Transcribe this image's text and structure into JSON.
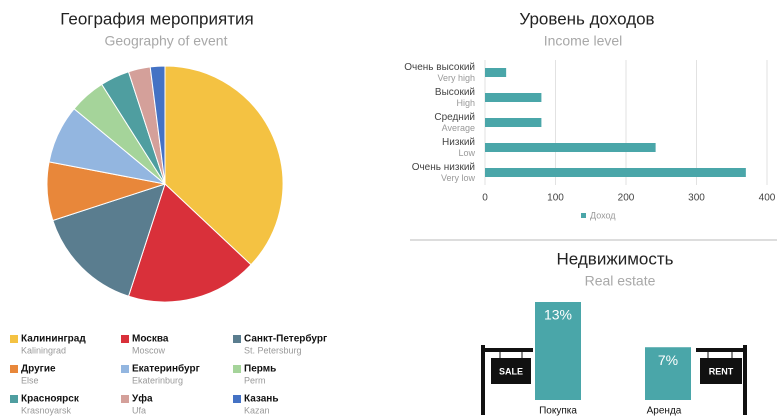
{
  "chart_data": [
    {
      "type": "pie",
      "title": "География мероприятия",
      "subtitle": "Geography of event",
      "categories": [
        "Калининград",
        "Москва",
        "Санкт-Петербург",
        "Другие",
        "Екатеринбург",
        "Пермь",
        "Красноярск",
        "Уфа",
        "Казань"
      ],
      "category_subtitles": [
        "Kaliningrad",
        "Moscow",
        "St. Petersburg",
        "Else",
        "Ekaterinburg",
        "Perm",
        "Krasnoyarsk",
        "Ufa",
        "Kazan"
      ],
      "values": [
        37,
        18,
        15,
        8,
        8,
        5,
        4,
        3,
        2
      ],
      "colors": [
        "#f4c242",
        "#d9303a",
        "#5a7d8f",
        "#e8873a",
        "#93b6e0",
        "#a5d49a",
        "#4f9ea0",
        "#d4a09a",
        "#4472c4"
      ],
      "legend": "bottom"
    },
    {
      "type": "hbar",
      "title": "Уровень доходов",
      "subtitle": "Income level",
      "categories": [
        "Очень высокий",
        "Высокий",
        "Средний",
        "Низкий",
        "Очень низкий"
      ],
      "category_subtitles": [
        "Very high",
        "High",
        "Average",
        "Low",
        "Very low"
      ],
      "series": [
        {
          "name": "Доход",
          "color": "#4aa6a9",
          "values": [
            30,
            80,
            80,
            242,
            370
          ]
        }
      ],
      "xlim": [
        0,
        400
      ],
      "xticks": [
        0,
        100,
        200,
        300,
        400
      ],
      "grid": true,
      "legend": "bottom"
    },
    {
      "type": "bar",
      "title": "Недвижимость",
      "subtitle": "Real estate",
      "categories": [
        "Покупка",
        "Аренда"
      ],
      "values": [
        13,
        7
      ],
      "value_labels": [
        "13%",
        "7%"
      ],
      "color": "#4aa6a9",
      "annotations": [
        "SALE",
        "RENT"
      ]
    }
  ]
}
